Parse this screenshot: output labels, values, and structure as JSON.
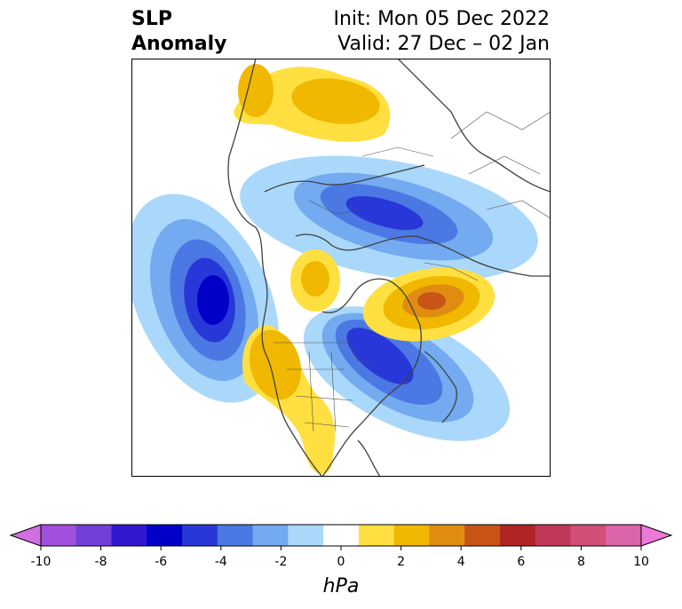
{
  "title": {
    "left_line1": "SLP",
    "left_line2": "Anomaly",
    "right_line1": "Init: Mon 05 Dec 2022",
    "right_line2": "Valid: 27 Dec – 02 Jan"
  },
  "colorbar": {
    "unit": "hPa",
    "tick_labels": [
      "-10",
      "-8",
      "-6",
      "-4",
      "-2",
      "0",
      "2",
      "4",
      "6",
      "8",
      "10"
    ],
    "colors": [
      "#d070e0",
      "#a050dc",
      "#7040d8",
      "#3018d0",
      "#0000c8",
      "#2838d8",
      "#4c78e4",
      "#74aaf0",
      "#aad8fa",
      "#ffffff",
      "#ffe040",
      "#f0b800",
      "#e08c10",
      "#c85418",
      "#b02424",
      "#c03858",
      "#d05078",
      "#dc64a8",
      "#ec78d8"
    ]
  },
  "map": {
    "projection": "north-polar-stereographic",
    "features": [
      {
        "label": "negative-anomaly-north-pacific",
        "sign": "negative"
      },
      {
        "label": "negative-anomaly-siberia",
        "sign": "negative"
      },
      {
        "label": "negative-anomaly-eastern-canada",
        "sign": "negative"
      },
      {
        "label": "positive-anomaly-scandinavia-north-atlantic",
        "sign": "positive"
      },
      {
        "label": "positive-anomaly-arctic",
        "sign": "positive"
      },
      {
        "label": "positive-anomaly-western-north-america",
        "sign": "positive"
      },
      {
        "label": "positive-anomaly-east-asia",
        "sign": "positive"
      }
    ]
  }
}
